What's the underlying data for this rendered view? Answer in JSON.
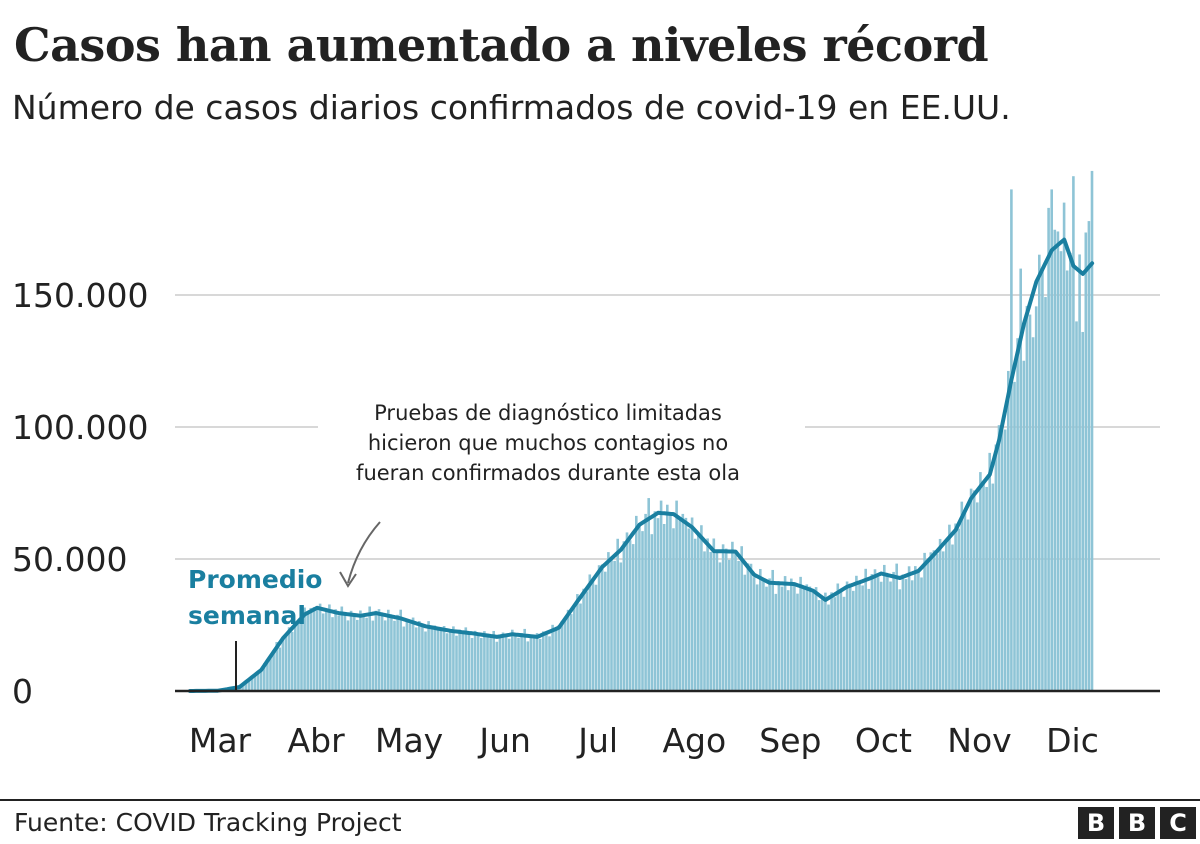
{
  "title": "Casos han aumentado a niveles récord",
  "subtitle": "Número de casos diarios confirmados de covid-19 en EE.UU.",
  "source": "Fuente: COVID Tracking Project",
  "logo": {
    "letters": [
      "B",
      "B",
      "C"
    ]
  },
  "colors": {
    "bars": "#8ec4d6",
    "line": "#1a7fa0",
    "axis": "#222222",
    "grid": "#cccccc",
    "label": "#1a7fa0"
  },
  "chart_data": {
    "type": "bar",
    "title": "Casos han aumentado a niveles récord",
    "subtitle": "Número de casos diarios confirmados de covid-19 en EE.UU.",
    "xlabel": "",
    "ylabel": "",
    "grid": true,
    "ylim": [
      0,
      200000
    ],
    "yticks": [
      0,
      50000,
      100000,
      150000
    ],
    "ytick_labels": [
      "0",
      "50.000",
      "100.000",
      "150.000"
    ],
    "xticks": [
      "Mar",
      "Abr",
      "May",
      "Jun",
      "Jul",
      "Ago",
      "Sep",
      "Oct",
      "Nov",
      "Dic"
    ],
    "series_name": "Promedio semanal",
    "annotation": "Pruebas de diagnóstico limitadas hicieron que muchos contagios no fueran confirmados durante esta ola",
    "weekly_average_knots": [
      [
        "2020-03-01",
        0
      ],
      [
        "2020-03-10",
        100
      ],
      [
        "2020-03-17",
        1500
      ],
      [
        "2020-03-24",
        8000
      ],
      [
        "2020-03-31",
        20000
      ],
      [
        "2020-04-07",
        29000
      ],
      [
        "2020-04-11",
        31500
      ],
      [
        "2020-04-18",
        29500
      ],
      [
        "2020-04-25",
        28500
      ],
      [
        "2020-04-30",
        29500
      ],
      [
        "2020-05-08",
        27500
      ],
      [
        "2020-05-16",
        24500
      ],
      [
        "2020-05-24",
        22800
      ],
      [
        "2020-06-01",
        21700
      ],
      [
        "2020-06-08",
        20500
      ],
      [
        "2020-06-13",
        21500
      ],
      [
        "2020-06-21",
        20500
      ],
      [
        "2020-06-28",
        24000
      ],
      [
        "2020-07-04",
        34000
      ],
      [
        "2020-07-12",
        47000
      ],
      [
        "2020-07-18",
        53500
      ],
      [
        "2020-07-24",
        63000
      ],
      [
        "2020-07-30",
        67500
      ],
      [
        "2020-08-04",
        67000
      ],
      [
        "2020-08-10",
        62000
      ],
      [
        "2020-08-17",
        53000
      ],
      [
        "2020-08-24",
        52800
      ],
      [
        "2020-08-30",
        44000
      ],
      [
        "2020-09-04",
        41000
      ],
      [
        "2020-09-12",
        40500
      ],
      [
        "2020-09-18",
        38000
      ],
      [
        "2020-09-22",
        34500
      ],
      [
        "2020-09-29",
        39500
      ],
      [
        "2020-10-06",
        42500
      ],
      [
        "2020-10-10",
        44500
      ],
      [
        "2020-10-16",
        42800
      ],
      [
        "2020-10-22",
        45500
      ],
      [
        "2020-10-28",
        53000
      ],
      [
        "2020-11-03",
        61000
      ],
      [
        "2020-11-08",
        73000
      ],
      [
        "2020-11-14",
        82000
      ],
      [
        "2020-11-17",
        95000
      ],
      [
        "2020-11-21",
        118000
      ],
      [
        "2020-11-25",
        139000
      ],
      [
        "2020-11-29",
        155000
      ],
      [
        "2020-12-04",
        167000
      ],
      [
        "2020-12-08",
        171000
      ],
      [
        "2020-12-11",
        161000
      ],
      [
        "2020-12-14",
        158000
      ],
      [
        "2020-12-17",
        162000
      ]
    ],
    "daily_noise_pct": [
      3,
      -2,
      6,
      -5,
      1,
      8,
      -7,
      4,
      -3,
      9,
      -1,
      -8,
      5,
      2,
      -6,
      7,
      0,
      -4,
      10,
      -9,
      3,
      6,
      -2,
      -7,
      8,
      1,
      -5,
      4,
      12,
      -10,
      2,
      -3,
      7,
      -6,
      5,
      0,
      -8,
      9,
      -1,
      4
    ],
    "daily_spikes": [
      [
        "2020-11-21",
        190000
      ],
      [
        "2020-11-24",
        160000
      ],
      [
        "2020-11-28",
        134000
      ],
      [
        "2020-12-03",
        183000
      ],
      [
        "2020-12-04",
        190000
      ],
      [
        "2020-12-08",
        185000
      ],
      [
        "2020-12-11",
        195000
      ],
      [
        "2020-12-12",
        140000
      ],
      [
        "2020-12-14",
        136000
      ],
      [
        "2020-12-16",
        178000
      ],
      [
        "2020-12-17",
        197000
      ]
    ],
    "date_range": [
      "2020-03-01",
      "2020-12-17"
    ]
  }
}
